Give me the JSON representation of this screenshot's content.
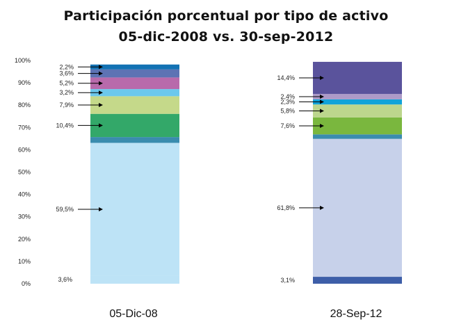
{
  "chart_data": {
    "type": "bar",
    "stacked": true,
    "title": "Participación porcentual por tipo de activo",
    "subtitle": "05-dic-2008 vs. 30-sep-2012",
    "xlabel": "",
    "ylabel": "",
    "ylim": [
      0,
      100
    ],
    "y_ticks": [
      "0%",
      "10%",
      "20%",
      "30%",
      "40%",
      "50%",
      "60%",
      "70%",
      "80%",
      "90%",
      "100%"
    ],
    "grid": false,
    "categories": [
      "05-Dic-08",
      "28-Sep-12"
    ],
    "bars": [
      {
        "category": "05-Dic-08",
        "segments": [
          {
            "value": 3.6,
            "label": "3,6%",
            "color": "#bde3f6",
            "arrow": false
          },
          {
            "value": 59.5,
            "label": "59,5%",
            "color": "#bde3f6",
            "arrow": true
          },
          {
            "value": 2.6,
            "label": "",
            "color": "#3a8cae",
            "arrow": false
          },
          {
            "value": 10.4,
            "label": "10,4%",
            "color": "#33a869",
            "arrow": true
          },
          {
            "value": 7.9,
            "label": "7,9%",
            "color": "#c5d98a",
            "arrow": true
          },
          {
            "value": 3.2,
            "label": "3,2%",
            "color": "#6cc8ec",
            "arrow": true
          },
          {
            "value": 5.2,
            "label": "5,2%",
            "color": "#b86aab",
            "arrow": true
          },
          {
            "value": 3.6,
            "label": "3,6%",
            "color": "#5d73b4",
            "arrow": true
          },
          {
            "value": 2.2,
            "label": "2,2%",
            "color": "#1372b4",
            "arrow": true
          }
        ]
      },
      {
        "category": "28-Sep-12",
        "segments": [
          {
            "value": 3.1,
            "label": "3,1%",
            "color": "#3d5ea8",
            "arrow": false
          },
          {
            "value": 61.8,
            "label": "61,8%",
            "color": "#c7d1ea",
            "arrow": true
          },
          {
            "value": 2.0,
            "label": "",
            "color": "#3a8cae",
            "arrow": false
          },
          {
            "value": 7.6,
            "label": "7,6%",
            "color": "#7ab73e",
            "arrow": true
          },
          {
            "value": 5.8,
            "label": "5,8%",
            "color": "#bcd68d",
            "arrow": true
          },
          {
            "value": 2.3,
            "label": "2,3%",
            "color": "#11a3d9",
            "arrow": true
          },
          {
            "value": 2.4,
            "label": "2,4%",
            "color": "#ad9ac8",
            "arrow": true
          },
          {
            "value": 14.4,
            "label": "14,4%",
            "color": "#5a539c",
            "arrow": true
          }
        ]
      }
    ]
  }
}
